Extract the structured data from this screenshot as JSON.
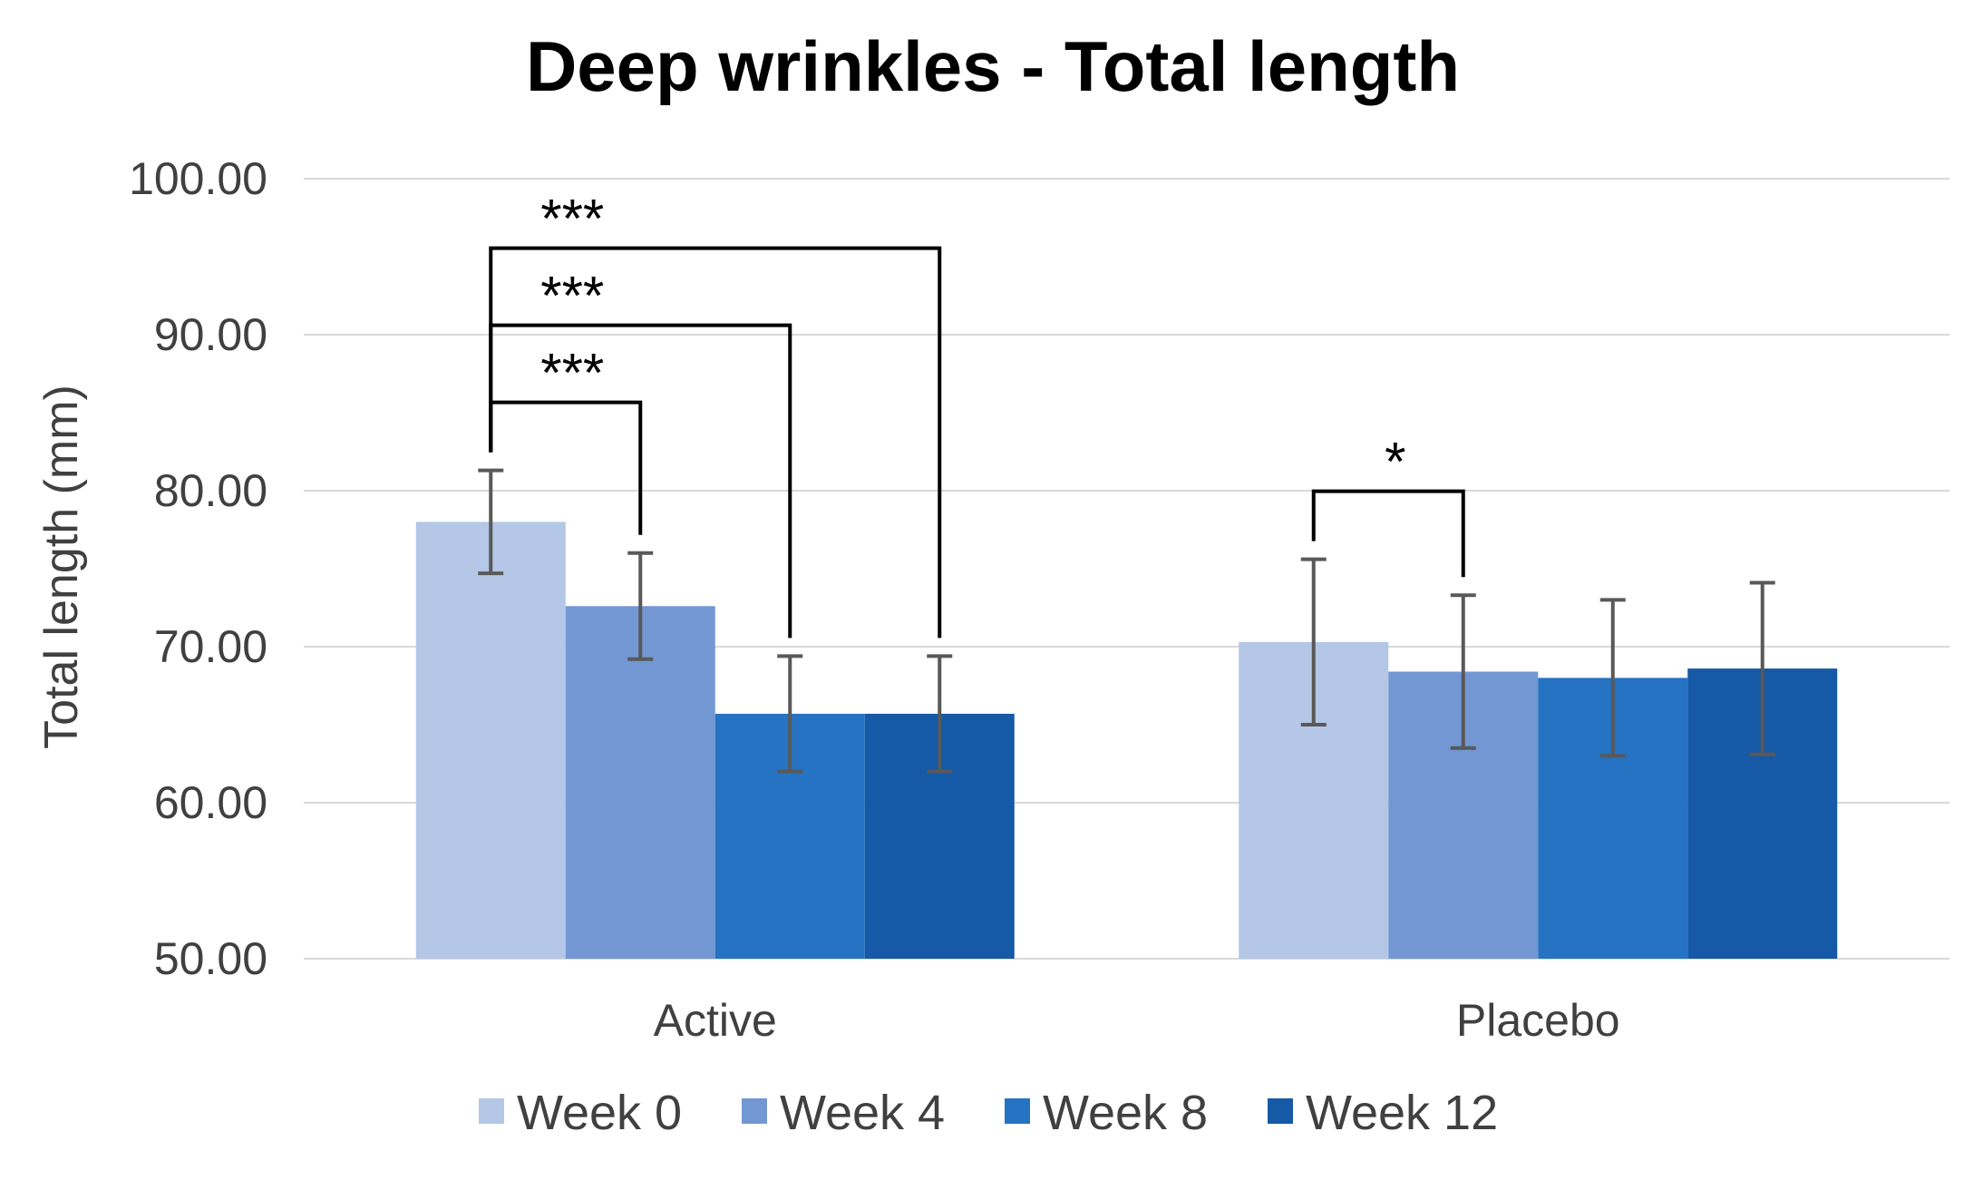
{
  "chart_data": {
    "type": "bar",
    "title": "Deep wrinkles - Total length",
    "ylabel": "Total length  (mm)",
    "xlabel": "",
    "ylim": [
      50,
      100
    ],
    "yticks": [
      "50.00",
      "60.00",
      "70.00",
      "80.00",
      "90.00",
      "100.00"
    ],
    "grid": true,
    "legend_position": "bottom",
    "categories": [
      "Active",
      "Placebo"
    ],
    "series": [
      {
        "name": "Week 0",
        "color": "#b4c7e7",
        "values": [
          78.0,
          70.3
        ],
        "error": [
          3.3,
          5.3
        ]
      },
      {
        "name": "Week 4",
        "color": "#7297d3",
        "values": [
          72.6,
          68.4
        ],
        "error": [
          3.4,
          4.9
        ]
      },
      {
        "name": "Week 8",
        "color": "#2573c2",
        "values": [
          65.7,
          68.0
        ],
        "error": [
          3.7,
          5.0
        ]
      },
      {
        "name": "Week 12",
        "color": "#1659a6",
        "values": [
          65.7,
          68.6
        ],
        "error": [
          3.7,
          5.5
        ]
      }
    ],
    "significance": [
      {
        "category": 0,
        "from": 0,
        "to": 1,
        "label": "***"
      },
      {
        "category": 0,
        "from": 0,
        "to": 2,
        "label": "***"
      },
      {
        "category": 0,
        "from": 0,
        "to": 3,
        "label": "***"
      },
      {
        "category": 1,
        "from": 0,
        "to": 1,
        "label": "*"
      }
    ]
  }
}
